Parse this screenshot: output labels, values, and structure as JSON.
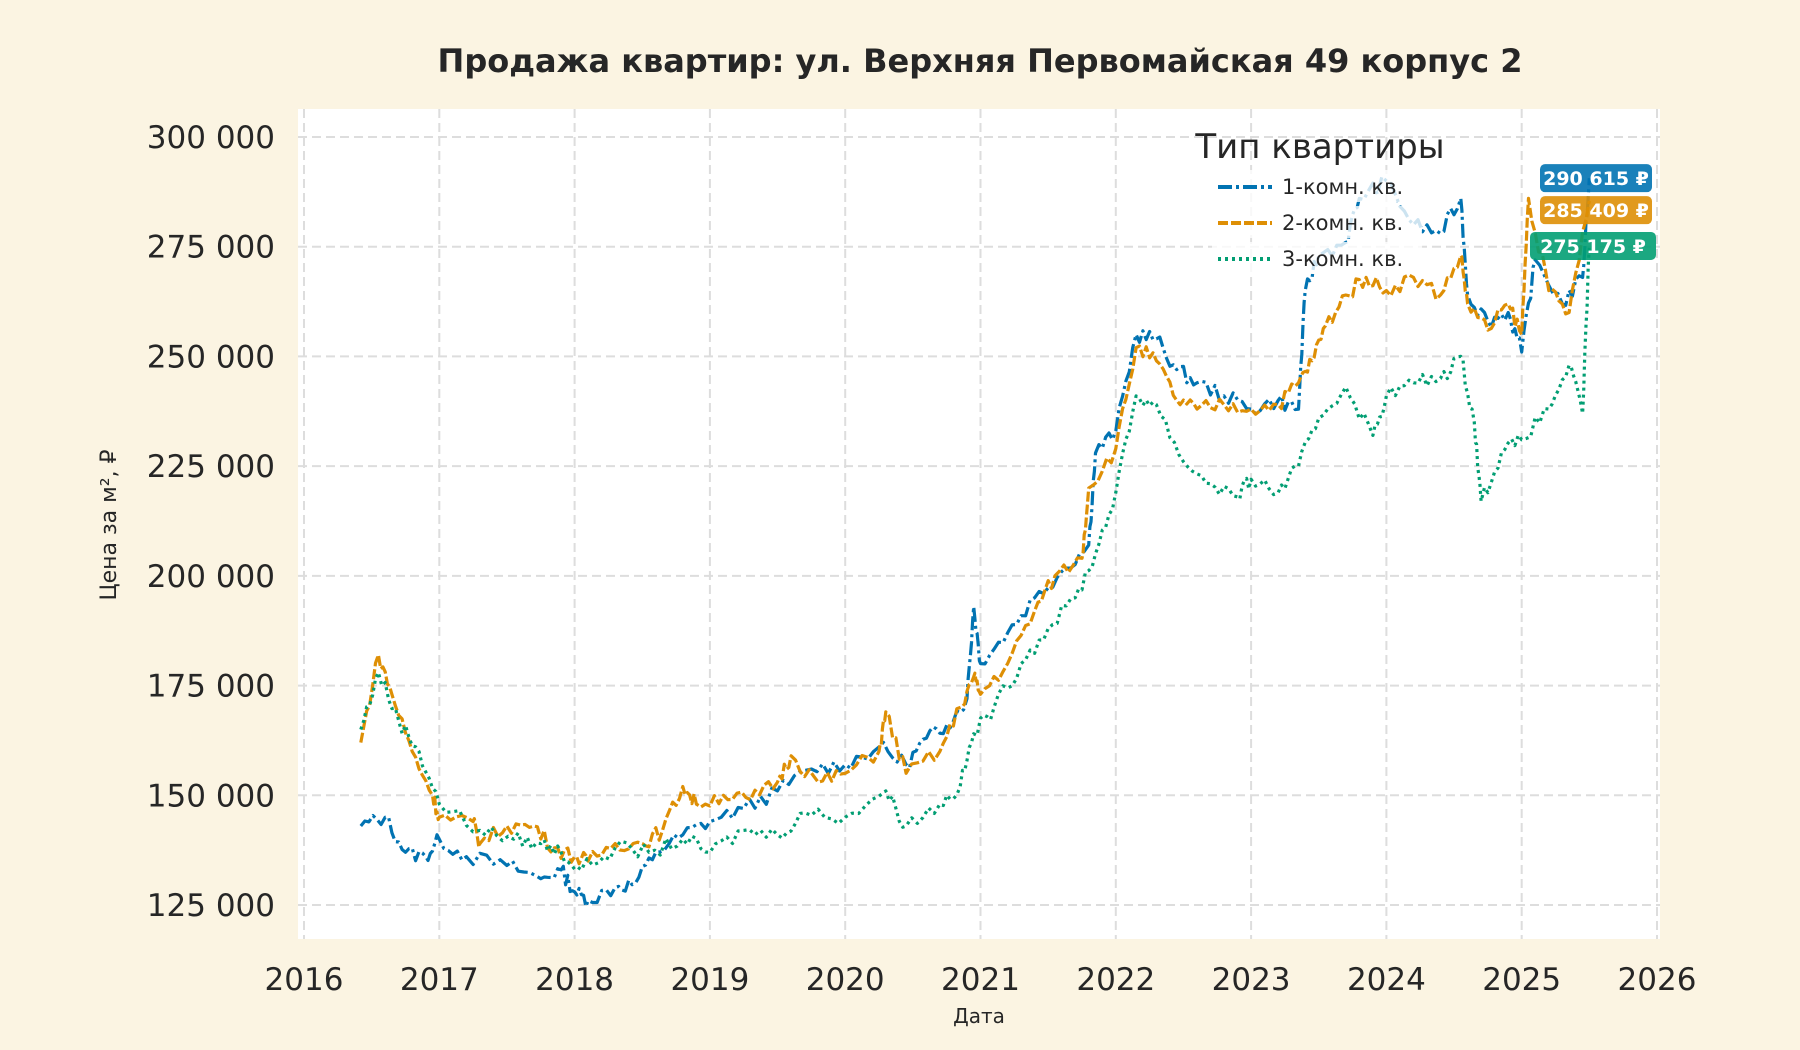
{
  "chart_data": {
    "type": "line",
    "title": "Продажа квартир: ул. Верхняя Первомайская 49 корпус 2",
    "xlabel": "Дата",
    "ylabel": "Цена за м², ₽",
    "xlim": [
      2016,
      2026
    ],
    "ylim": [
      118000,
      306000
    ],
    "x_ticks": [
      "2016",
      "2017",
      "2018",
      "2019",
      "2020",
      "2021",
      "2022",
      "2023",
      "2024",
      "2025",
      "2026"
    ],
    "y_ticks": [
      125000,
      150000,
      175000,
      200000,
      225000,
      250000,
      275000,
      300000
    ],
    "y_tick_labels": [
      "125 000",
      "150 000",
      "175 000",
      "200 000",
      "225 000",
      "250 000",
      "275 000",
      "300 000"
    ],
    "grid": true,
    "legend_title": "Тип квартиры",
    "legend_placement": "top-right",
    "background": "#fbf4e2",
    "series": [
      {
        "name": "1-комн. кв.",
        "color": "#0173b2",
        "style": "dash-dot",
        "last_label": "290 615 ₽",
        "x": [
          2016.42,
          2016.6,
          2016.75,
          2016.9,
          2017.0,
          2017.2,
          2017.5,
          2017.75,
          2017.9,
          2018.0,
          2018.1,
          2018.3,
          2018.45,
          2018.6,
          2018.8,
          2019.0,
          2019.25,
          2019.5,
          2019.75,
          2020.0,
          2020.25,
          2020.45,
          2020.6,
          2020.75,
          2020.9,
          2020.95,
          2021.0,
          2021.2,
          2021.4,
          2021.6,
          2021.8,
          2021.85,
          2022.0,
          2022.15,
          2022.3,
          2022.45,
          2022.6,
          2022.8,
          2023.0,
          2023.2,
          2023.35,
          2023.4,
          2023.5,
          2023.7,
          2023.8,
          2024.0,
          2024.2,
          2024.4,
          2024.55,
          2024.6,
          2024.75,
          2024.9,
          2025.0,
          2025.1,
          2025.3,
          2025.45,
          2025.5
        ],
        "y": [
          143000,
          145000,
          137000,
          136000,
          140000,
          136000,
          134000,
          131000,
          133000,
          128000,
          126000,
          129000,
          130000,
          137000,
          141000,
          144000,
          147000,
          151000,
          156000,
          157000,
          161000,
          157000,
          163000,
          166000,
          172000,
          193000,
          180000,
          187000,
          195000,
          201000,
          207000,
          228000,
          233000,
          255000,
          254000,
          247000,
          244000,
          241000,
          238000,
          240000,
          238000,
          265000,
          273000,
          276000,
          286000,
          290000,
          280000,
          278000,
          286000,
          264000,
          258000,
          260000,
          251000,
          272000,
          262000,
          268000,
          290615
        ]
      },
      {
        "name": "2-комн. кв.",
        "color": "#de8f05",
        "style": "dashed",
        "last_label": "285 409 ₽",
        "x": [
          2016.42,
          2016.55,
          2016.65,
          2016.8,
          2016.95,
          2017.0,
          2017.25,
          2017.3,
          2017.5,
          2017.7,
          2017.85,
          2018.0,
          2018.1,
          2018.3,
          2018.5,
          2018.65,
          2018.8,
          2018.9,
          2019.1,
          2019.3,
          2019.5,
          2019.6,
          2019.8,
          2020.0,
          2020.25,
          2020.3,
          2020.45,
          2020.7,
          2020.85,
          2020.95,
          2021.0,
          2021.2,
          2021.4,
          2021.55,
          2021.75,
          2021.8,
          2022.0,
          2022.15,
          2022.3,
          2022.45,
          2022.6,
          2022.8,
          2023.0,
          2023.2,
          2023.35,
          2023.45,
          2023.55,
          2023.7,
          2023.85,
          2024.0,
          2024.2,
          2024.4,
          2024.55,
          2024.6,
          2024.75,
          2024.9,
          2025.0,
          2025.05,
          2025.2,
          2025.35,
          2025.5
        ],
        "y": [
          162000,
          182000,
          173000,
          160000,
          150000,
          145000,
          144000,
          139000,
          143000,
          143000,
          138000,
          136000,
          135000,
          139000,
          139000,
          142000,
          152000,
          148000,
          150000,
          149000,
          153000,
          159000,
          153000,
          155000,
          160000,
          169000,
          155000,
          160000,
          170000,
          177000,
          173000,
          180000,
          192000,
          200000,
          204000,
          220000,
          229000,
          252000,
          249000,
          240000,
          238000,
          239000,
          238000,
          239000,
          244000,
          249000,
          257000,
          264000,
          268000,
          265000,
          268000,
          264000,
          273000,
          262000,
          256000,
          262000,
          255000,
          286000,
          265000,
          260000,
          285409
        ]
      },
      {
        "name": "3-комн. кв.",
        "color": "#029e73",
        "style": "dotted",
        "last_label": "275 175 ₽",
        "x": [
          2016.42,
          2016.55,
          2016.7,
          2016.85,
          2017.0,
          2017.3,
          2017.55,
          2017.75,
          2017.9,
          2018.05,
          2018.3,
          2018.55,
          2018.8,
          2019.0,
          2019.25,
          2019.5,
          2019.7,
          2020.0,
          2020.3,
          2020.45,
          2020.7,
          2020.85,
          2020.95,
          2021.1,
          2021.3,
          2021.5,
          2021.7,
          2021.85,
          2022.0,
          2022.15,
          2022.3,
          2022.5,
          2022.7,
          2022.9,
          2023.0,
          2023.2,
          2023.35,
          2023.5,
          2023.7,
          2023.9,
          2024.0,
          2024.2,
          2024.4,
          2024.55,
          2024.65,
          2024.7,
          2024.85,
          2025.0,
          2025.2,
          2025.35,
          2025.45,
          2025.5
        ],
        "y": [
          165000,
          178000,
          167000,
          160000,
          148000,
          142000,
          140000,
          139000,
          137000,
          133000,
          138000,
          137000,
          140000,
          137000,
          142000,
          141000,
          146000,
          145000,
          151000,
          143000,
          148000,
          152000,
          164000,
          170000,
          180000,
          188000,
          195000,
          205000,
          219000,
          241000,
          239000,
          226000,
          221000,
          218000,
          222000,
          219000,
          225000,
          236000,
          243000,
          232000,
          241000,
          244000,
          245000,
          250000,
          235000,
          217000,
          228000,
          231000,
          238000,
          248000,
          237000,
          275175
        ]
      }
    ]
  }
}
